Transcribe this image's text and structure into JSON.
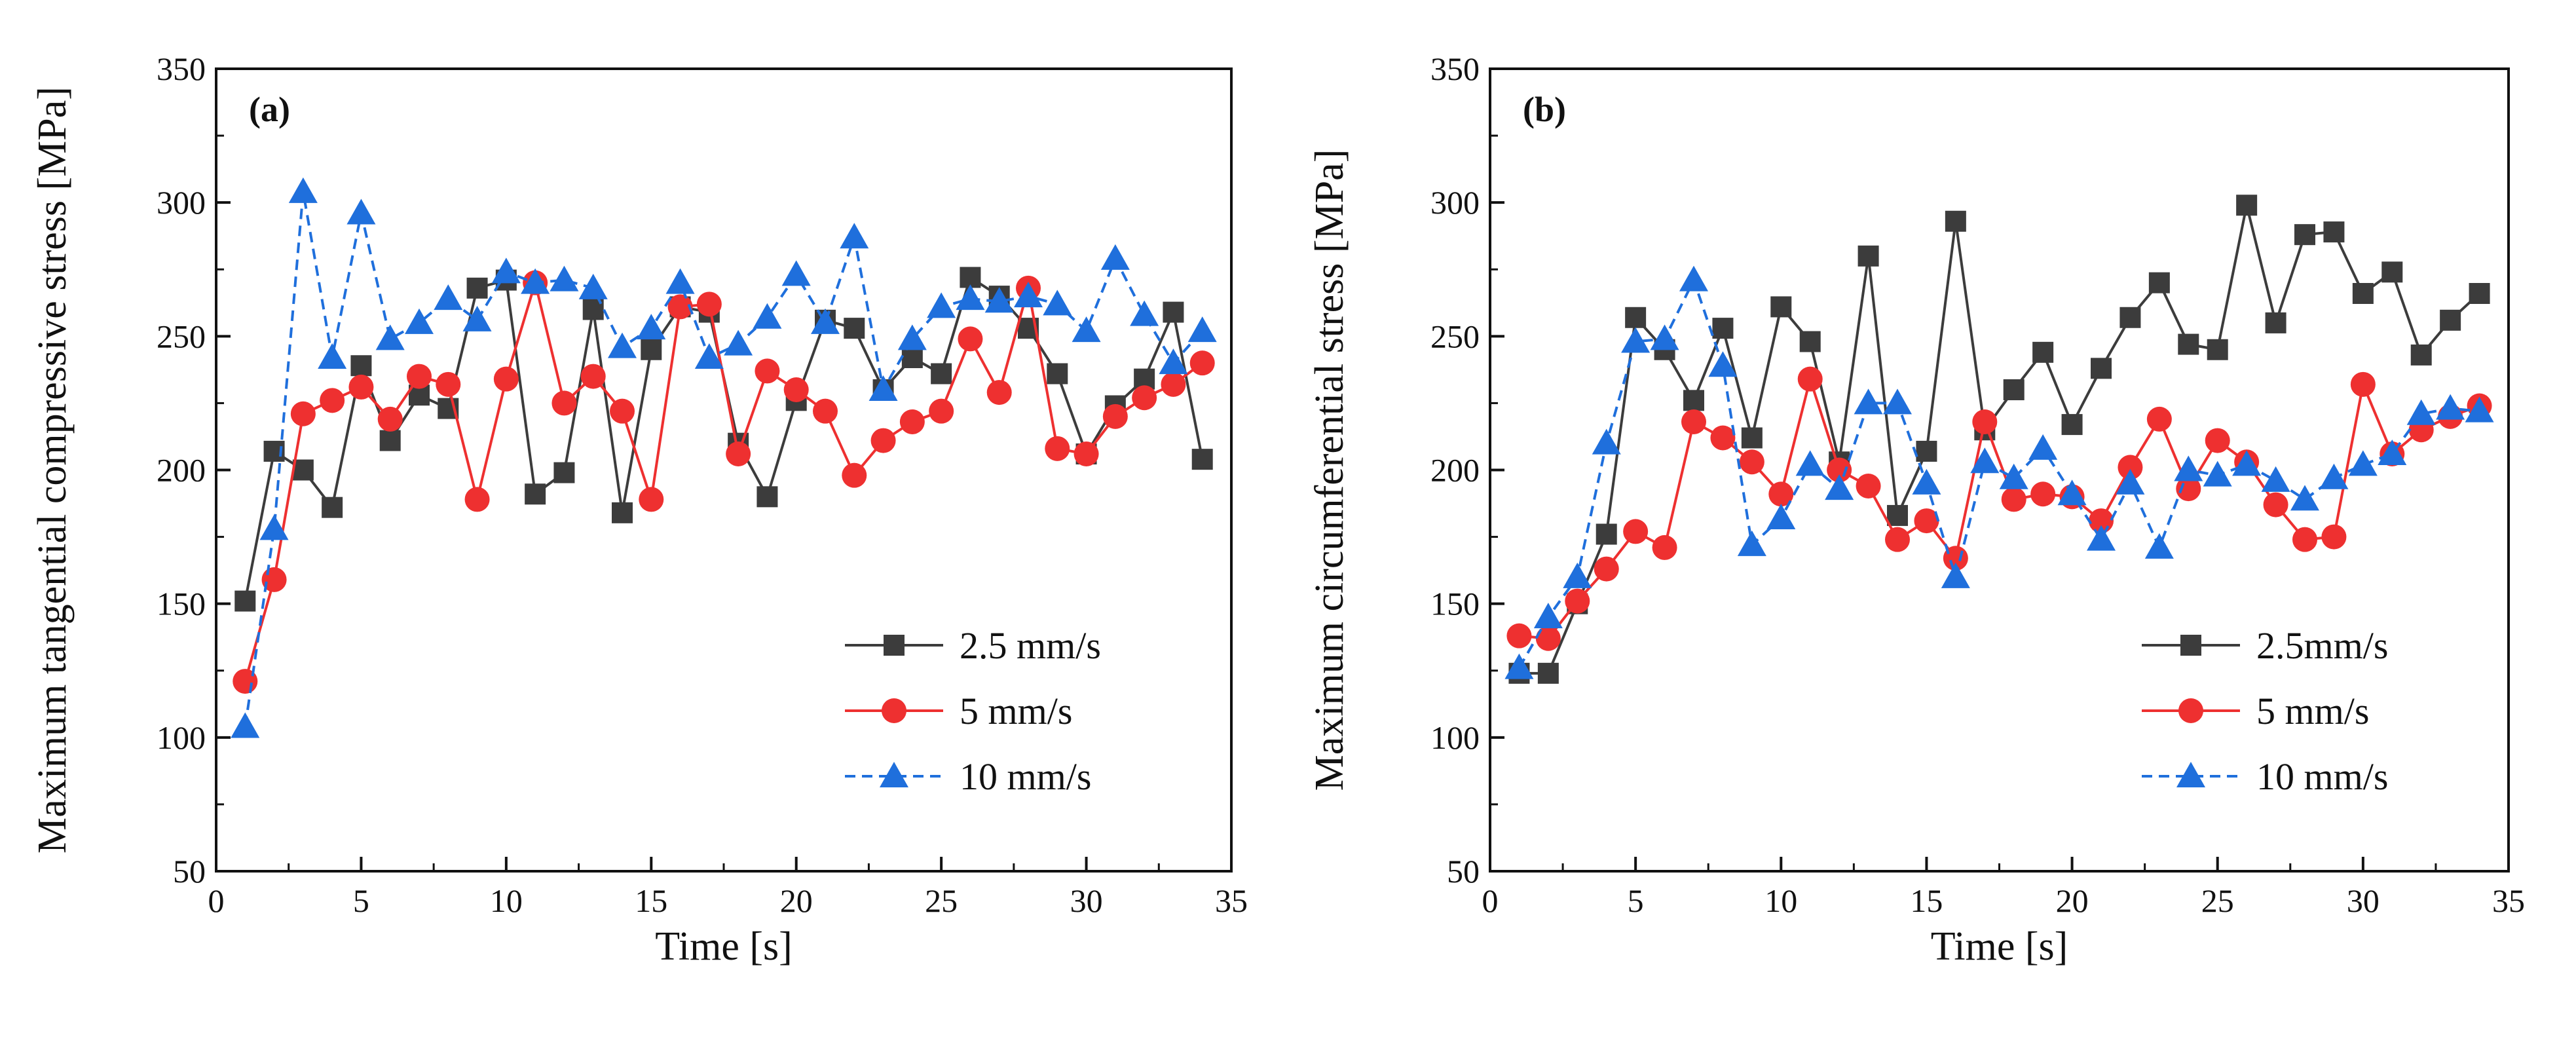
{
  "chart_data": [
    {
      "type": "line",
      "panel_label": "(a)",
      "xlabel": "Time [s]",
      "ylabel": "Maximum tangential compressive stress [MPa]",
      "xlim": [
        0,
        35
      ],
      "ylim": [
        50,
        350
      ],
      "xticks": [
        "0",
        "5",
        "10",
        "15",
        "20",
        "25",
        "30",
        "35"
      ],
      "yticks": [
        "50",
        "100",
        "150",
        "200",
        "250",
        "300",
        "350"
      ],
      "legend_position": "bottom-right",
      "x": [
        1,
        2,
        3,
        4,
        5,
        6,
        7,
        8,
        9,
        10,
        11,
        12,
        13,
        14,
        15,
        16,
        17,
        18,
        19,
        20,
        21,
        22,
        23,
        24,
        25,
        26,
        27,
        28,
        29,
        30,
        31,
        32,
        33,
        34
      ],
      "series": [
        {
          "name": "2.5 mm/s",
          "color": "#3c3c3c",
          "marker": "square",
          "dashed": false,
          "values": [
            151,
            207,
            200,
            186,
            239,
            211,
            228,
            223,
            268,
            271,
            191,
            199,
            260,
            184,
            245,
            261,
            259,
            210,
            190,
            226,
            256,
            253,
            230,
            242,
            236,
            272,
            265,
            253,
            236,
            206,
            224,
            234,
            259,
            204
          ]
        },
        {
          "name": "5 mm/s",
          "color": "#ee3030",
          "marker": "circle",
          "dashed": false,
          "values": [
            121,
            159,
            221,
            226,
            231,
            219,
            235,
            232,
            189,
            234,
            270,
            225,
            235,
            222,
            189,
            261,
            262,
            206,
            237,
            230,
            222,
            198,
            211,
            218,
            222,
            249,
            229,
            268,
            208,
            206,
            220,
            227,
            232,
            240
          ]
        },
        {
          "name": "10 mm/s",
          "color": "#1f6fdc",
          "marker": "triangle",
          "dashed": true,
          "values": [
            104,
            178,
            304,
            242,
            296,
            249,
            255,
            264,
            256,
            274,
            270,
            271,
            268,
            246,
            253,
            270,
            242,
            247,
            257,
            273,
            255,
            287,
            230,
            249,
            261,
            264,
            263,
            265,
            262,
            252,
            279,
            258,
            240,
            252
          ]
        }
      ]
    },
    {
      "type": "line",
      "panel_label": "(b)",
      "xlabel": "Time [s]",
      "ylabel": "Maximum circumferential stress [MPa]",
      "xlim": [
        0,
        35
      ],
      "ylim": [
        50,
        350
      ],
      "xticks": [
        "0",
        "5",
        "10",
        "15",
        "20",
        "25",
        "30",
        "35"
      ],
      "yticks": [
        "50",
        "100",
        "150",
        "200",
        "250",
        "300",
        "350"
      ],
      "legend_position": "bottom-right",
      "x": [
        1,
        2,
        3,
        4,
        5,
        6,
        7,
        8,
        9,
        10,
        11,
        12,
        13,
        14,
        15,
        16,
        17,
        18,
        19,
        20,
        21,
        22,
        23,
        24,
        25,
        26,
        27,
        28,
        29,
        30,
        31,
        32,
        33,
        34
      ],
      "series": [
        {
          "name": "2.5mm/s",
          "color": "#3c3c3c",
          "marker": "square",
          "dashed": false,
          "values": [
            124,
            124,
            150,
            176,
            257,
            245,
            226,
            253,
            212,
            261,
            248,
            203,
            280,
            183,
            207,
            293,
            215,
            230,
            244,
            217,
            238,
            257,
            270,
            247,
            245,
            299,
            255,
            288,
            289,
            266,
            274,
            243,
            256,
            266
          ]
        },
        {
          "name": "5 mm/s",
          "color": "#ee3030",
          "marker": "circle",
          "dashed": false,
          "values": [
            138,
            137,
            151,
            163,
            177,
            171,
            218,
            212,
            203,
            191,
            234,
            200,
            194,
            174,
            181,
            167,
            218,
            189,
            191,
            190,
            181,
            201,
            219,
            193,
            211,
            203,
            187,
            174,
            175,
            232,
            206,
            215,
            220,
            224
          ]
        },
        {
          "name": "10 mm/s",
          "color": "#1f6fdc",
          "marker": "triangle",
          "dashed": true,
          "values": [
            126,
            145,
            160,
            210,
            248,
            249,
            271,
            239,
            172,
            182,
            202,
            193,
            225,
            225,
            195,
            160,
            203,
            197,
            208,
            191,
            174,
            195,
            171,
            200,
            198,
            202,
            196,
            189,
            197,
            202,
            206,
            221,
            223,
            222
          ]
        }
      ]
    }
  ]
}
